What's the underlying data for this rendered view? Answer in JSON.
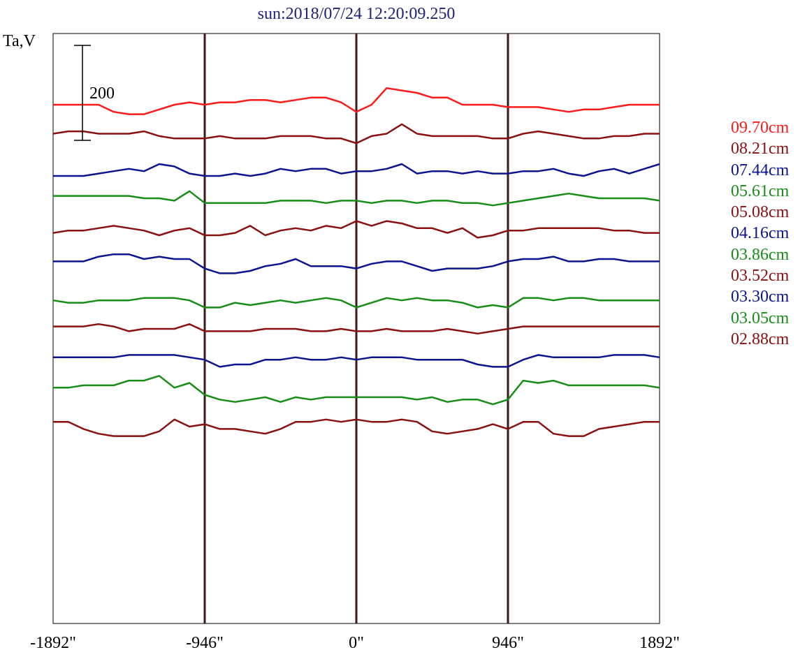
{
  "chart_data": {
    "type": "line",
    "title": "sun:2018/07/24 12:20:09.250",
    "ylabel": "Ta,V",
    "scale_bar_label": "200",
    "scale_bar_value": 200,
    "x_range": [
      -1892,
      1892
    ],
    "x_ticks": [
      {
        "value": -1892,
        "label": "-1892\""
      },
      {
        "value": -946,
        "label": "-946\""
      },
      {
        "value": 0,
        "label": "0\""
      },
      {
        "value": 946,
        "label": "946\""
      },
      {
        "value": 1892,
        "label": "1892\""
      }
    ],
    "vertical_markers": [
      -946,
      0,
      946
    ],
    "x": [
      -1892,
      -1797,
      -1703,
      -1608,
      -1514,
      -1419,
      -1325,
      -1230,
      -1135,
      -1041,
      -946,
      -852,
      -757,
      -662,
      -568,
      -473,
      -379,
      -284,
      -189,
      -95,
      0,
      95,
      189,
      284,
      379,
      473,
      568,
      662,
      757,
      852,
      946,
      1041,
      1135,
      1230,
      1325,
      1419,
      1514,
      1608,
      1703,
      1797,
      1892
    ],
    "series": [
      {
        "name": "09.70cm",
        "color": "#ff1a1a",
        "offset_from_top": 0,
        "values": [
          0,
          0,
          0,
          0,
          -15,
          -20,
          -20,
          -10,
          0,
          5,
          0,
          5,
          5,
          10,
          10,
          5,
          10,
          15,
          15,
          5,
          -15,
          0,
          35,
          30,
          25,
          15,
          15,
          0,
          0,
          0,
          -5,
          -5,
          -5,
          -10,
          -15,
          -10,
          -10,
          -5,
          0,
          0,
          0
        ]
      },
      {
        "name": "08.21cm",
        "color": "#8b1010",
        "offset_from_top": 61,
        "values": [
          0,
          5,
          5,
          0,
          0,
          0,
          5,
          -5,
          -10,
          -10,
          -10,
          -5,
          -10,
          -10,
          -10,
          -5,
          -5,
          -5,
          -10,
          -10,
          -20,
          -5,
          0,
          20,
          0,
          -5,
          -5,
          -5,
          -5,
          -10,
          -10,
          0,
          5,
          0,
          -5,
          -10,
          -10,
          -5,
          -5,
          0,
          0
        ]
      },
      {
        "name": "07.44cm",
        "color": "#0c1490",
        "offset_from_top": 150,
        "values": [
          0,
          0,
          0,
          5,
          10,
          15,
          10,
          25,
          20,
          5,
          0,
          0,
          5,
          0,
          5,
          15,
          10,
          15,
          15,
          5,
          10,
          10,
          15,
          25,
          5,
          10,
          10,
          5,
          10,
          5,
          5,
          10,
          10,
          15,
          5,
          0,
          10,
          15,
          5,
          15,
          25
        ]
      },
      {
        "name": "05.61cm",
        "color": "#178d17",
        "offset_from_top": 192,
        "values": [
          0,
          0,
          0,
          0,
          0,
          0,
          -5,
          -5,
          -10,
          10,
          -15,
          -15,
          -15,
          -15,
          -15,
          -10,
          -10,
          -10,
          -15,
          -10,
          -10,
          -15,
          -10,
          -10,
          -15,
          -10,
          -10,
          -15,
          -15,
          -20,
          -15,
          -10,
          -5,
          0,
          5,
          0,
          -5,
          -5,
          -5,
          -5,
          -10
        ]
      },
      {
        "name": "05.08cm",
        "color": "#8b1010",
        "offset_from_top": 270,
        "values": [
          0,
          5,
          5,
          10,
          15,
          10,
          5,
          -5,
          5,
          10,
          -5,
          -5,
          0,
          15,
          -5,
          5,
          10,
          5,
          15,
          10,
          25,
          15,
          25,
          20,
          10,
          10,
          0,
          10,
          -10,
          -5,
          5,
          5,
          10,
          10,
          10,
          10,
          10,
          5,
          5,
          0,
          0
        ]
      },
      {
        "name": "04.16cm",
        "color": "#0c1490",
        "offset_from_top": 330,
        "values": [
          0,
          0,
          0,
          10,
          15,
          15,
          5,
          10,
          5,
          5,
          -15,
          -25,
          -25,
          -20,
          -10,
          -5,
          5,
          -10,
          -10,
          -10,
          -15,
          -5,
          0,
          0,
          -10,
          -20,
          -15,
          -15,
          -15,
          -10,
          0,
          5,
          5,
          10,
          0,
          0,
          5,
          5,
          0,
          0,
          0
        ]
      },
      {
        "name": "03.86cm",
        "color": "#178d17",
        "offset_from_top": 412,
        "values": [
          0,
          -5,
          -5,
          0,
          0,
          0,
          5,
          5,
          5,
          0,
          -15,
          -15,
          -5,
          -10,
          -5,
          0,
          -5,
          0,
          5,
          0,
          -15,
          -5,
          5,
          0,
          5,
          0,
          0,
          -5,
          -15,
          -10,
          -15,
          5,
          5,
          0,
          5,
          5,
          0,
          0,
          0,
          0,
          0
        ]
      },
      {
        "name": "03.52cm",
        "color": "#8b1010",
        "offset_from_top": 467,
        "values": [
          0,
          0,
          0,
          5,
          0,
          -10,
          -5,
          -5,
          -5,
          5,
          -10,
          -10,
          -10,
          -10,
          -5,
          -5,
          -5,
          -10,
          -10,
          -5,
          -10,
          -10,
          -5,
          -10,
          -10,
          -10,
          -5,
          -10,
          -15,
          -10,
          -5,
          0,
          0,
          0,
          0,
          0,
          0,
          0,
          0,
          0,
          0
        ]
      },
      {
        "name": "03.30cm",
        "color": "#0c1490",
        "offset_from_top": 532,
        "values": [
          0,
          0,
          0,
          0,
          0,
          5,
          5,
          5,
          5,
          0,
          -5,
          -20,
          -15,
          -15,
          -5,
          -5,
          0,
          -5,
          -5,
          0,
          -5,
          0,
          0,
          0,
          -5,
          -5,
          -5,
          -5,
          -15,
          -20,
          -20,
          -5,
          5,
          0,
          0,
          0,
          0,
          5,
          5,
          5,
          0
        ]
      },
      {
        "name": "03.05cm",
        "color": "#178d17",
        "offset_from_top": 596,
        "values": [
          0,
          0,
          5,
          5,
          5,
          15,
          15,
          25,
          0,
          10,
          -15,
          -25,
          -30,
          -25,
          -20,
          -30,
          -20,
          -25,
          -20,
          -20,
          -20,
          -20,
          -20,
          -20,
          -25,
          -20,
          -30,
          -25,
          -25,
          -35,
          -25,
          15,
          10,
          15,
          5,
          5,
          5,
          5,
          5,
          5,
          0
        ]
      },
      {
        "name": "02.88cm",
        "color": "#8b1010",
        "offset_from_top": 668,
        "values": [
          0,
          0,
          -15,
          -25,
          -30,
          -30,
          -30,
          -20,
          5,
          -10,
          -5,
          -15,
          -15,
          -20,
          -25,
          -15,
          0,
          0,
          5,
          0,
          5,
          0,
          0,
          5,
          0,
          -20,
          -25,
          -20,
          -15,
          -5,
          -15,
          0,
          0,
          -25,
          -30,
          -30,
          -15,
          -10,
          -5,
          0,
          0
        ]
      }
    ]
  }
}
